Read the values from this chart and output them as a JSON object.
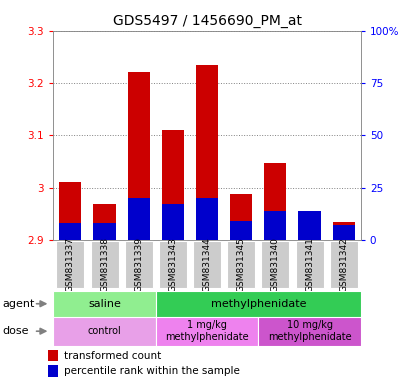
{
  "title": "GDS5497 / 1456690_PM_at",
  "samples": [
    "GSM831337",
    "GSM831338",
    "GSM831339",
    "GSM831343",
    "GSM831344",
    "GSM831345",
    "GSM831340",
    "GSM831341",
    "GSM831342"
  ],
  "red_values": [
    3.01,
    2.968,
    3.222,
    3.11,
    3.235,
    2.988,
    3.048,
    2.905,
    2.935
  ],
  "blue_pct": [
    8,
    8,
    20,
    17,
    20,
    9,
    14,
    14,
    7
  ],
  "base": 2.9,
  "ylim_left": [
    2.9,
    3.3
  ],
  "ylim_right": [
    0,
    100
  ],
  "yticks_left": [
    2.9,
    3.0,
    3.1,
    3.2,
    3.3
  ],
  "yticks_right": [
    0,
    25,
    50,
    75,
    100
  ],
  "ytick_labels_left": [
    "2.9",
    "3",
    "3.1",
    "3.2",
    "3.3"
  ],
  "ytick_labels_right": [
    "0",
    "25",
    "50",
    "75",
    "100%"
  ],
  "agent_groups": [
    {
      "label": "saline",
      "start": 0,
      "end": 3,
      "color": "#90EE90"
    },
    {
      "label": "methylphenidate",
      "start": 3,
      "end": 9,
      "color": "#33CC55"
    }
  ],
  "dose_groups": [
    {
      "label": "control",
      "start": 0,
      "end": 3,
      "color": "#E8A0E8"
    },
    {
      "label": "1 mg/kg\nmethylphenidate",
      "start": 3,
      "end": 6,
      "color": "#EE82EE"
    },
    {
      "label": "10 mg/kg\nmethylphenidate",
      "start": 6,
      "end": 9,
      "color": "#CC55CC"
    }
  ],
  "legend_red": "transformed count",
  "legend_blue": "percentile rank within the sample",
  "red_color": "#CC0000",
  "blue_color": "#0000CC",
  "bar_width": 0.65,
  "title_fontsize": 10,
  "tick_fontsize": 7.5,
  "label_fontsize": 8
}
